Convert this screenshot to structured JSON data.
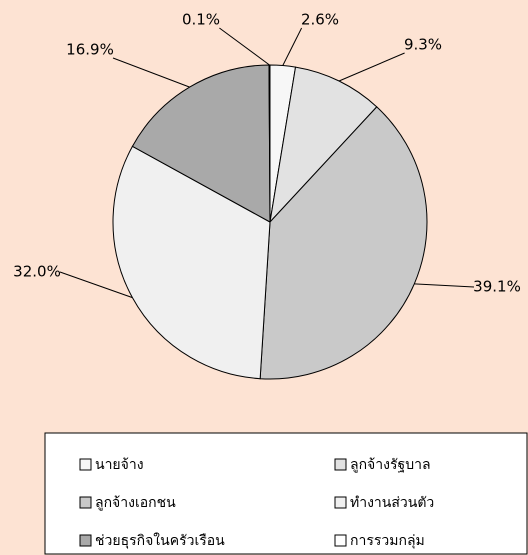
{
  "chart_data": {
    "type": "pie",
    "categories": [
      "นายจ้าง",
      "ลูกจ้างรัฐบาล",
      "ลูกจ้างเอกชน",
      "ทำงานส่วนตัว",
      "ช่วยธุรกิจในครัวเรือน",
      "การรวมกลุ่ม"
    ],
    "values": [
      2.6,
      9.3,
      39.1,
      32.0,
      16.9,
      0.1
    ],
    "value_labels": [
      "2.6%",
      "9.3%",
      "39.1%",
      "32.0%",
      "16.9%",
      "0.1%"
    ],
    "colors": [
      "#f7f7f7",
      "#e2e2e2",
      "#c9c9c9",
      "#f0f0f0",
      "#a9a9a9",
      "#ffffff"
    ],
    "legend": "bottom"
  }
}
